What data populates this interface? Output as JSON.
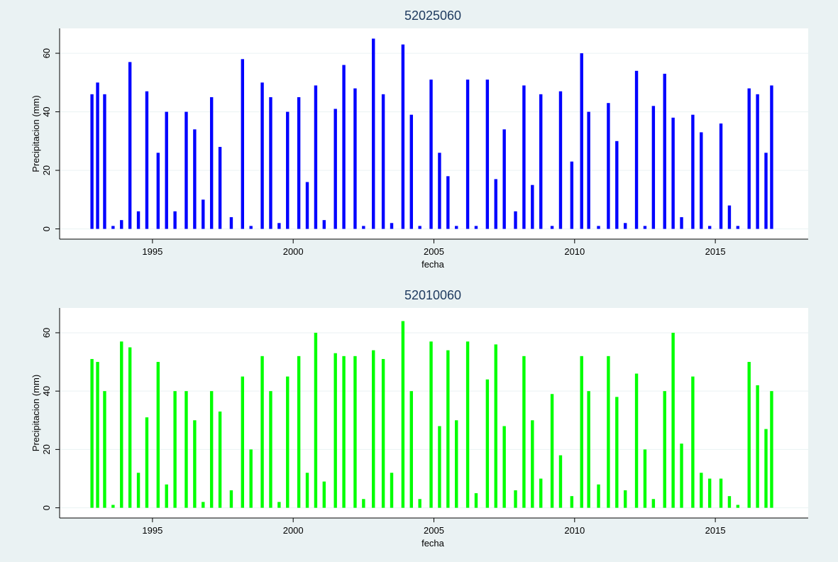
{
  "chart_data": [
    {
      "type": "bar",
      "title": "52025060",
      "xlabel": "fecha",
      "ylabel": "Precipitacion (mm)",
      "color": "#0000ff",
      "xlim": [
        1991.7,
        2018.3
      ],
      "ylim": [
        -3.5,
        68.5
      ],
      "xticks": [
        1995,
        2000,
        2005,
        2010,
        2015
      ],
      "xtick_labels": [
        "1995",
        "2000",
        "2005",
        "2010",
        "2015"
      ],
      "yticks": [
        0,
        20,
        40,
        60
      ],
      "ytick_labels": [
        "0",
        "20",
        "40",
        "60"
      ],
      "grid": true,
      "x": [
        1992.85,
        1993.05,
        1993.3,
        1993.6,
        1993.9,
        1994.2,
        1994.5,
        1994.8,
        1995.2,
        1995.5,
        1995.8,
        1996.2,
        1996.5,
        1996.8,
        1997.1,
        1997.4,
        1997.8,
        1998.2,
        1998.5,
        1998.9,
        1999.2,
        1999.5,
        1999.8,
        2000.2,
        2000.5,
        2000.8,
        2001.1,
        2001.5,
        2001.8,
        2002.2,
        2002.5,
        2002.85,
        2003.2,
        2003.5,
        2003.9,
        2004.2,
        2004.5,
        2004.9,
        2005.2,
        2005.5,
        2005.8,
        2006.2,
        2006.5,
        2006.9,
        2007.2,
        2007.5,
        2007.9,
        2008.2,
        2008.5,
        2008.8,
        2009.2,
        2009.5,
        2009.9,
        2010.25,
        2010.5,
        2010.85,
        2011.2,
        2011.5,
        2011.8,
        2012.2,
        2012.5,
        2012.8,
        2013.2,
        2013.5,
        2013.8,
        2014.2,
        2014.5,
        2014.8,
        2015.2,
        2015.5,
        2015.8,
        2016.2,
        2016.5,
        2016.8,
        2017.0
      ],
      "values": [
        46,
        50,
        46,
        1,
        3,
        57,
        6,
        47,
        26,
        40,
        6,
        40,
        34,
        10,
        45,
        28,
        4,
        58,
        1,
        50,
        45,
        2,
        40,
        45,
        16,
        49,
        3,
        41,
        56,
        48,
        1,
        65,
        46,
        2,
        63,
        39,
        1,
        51,
        26,
        18,
        1,
        51,
        1,
        51,
        17,
        34,
        6,
        49,
        15,
        46,
        1,
        47,
        23,
        60,
        40,
        1,
        43,
        30,
        2,
        54,
        1,
        42,
        53,
        38,
        4,
        39,
        33,
        1,
        36,
        8,
        1,
        48,
        46,
        26,
        49
      ]
    },
    {
      "type": "bar",
      "title": "52010060",
      "xlabel": "fecha",
      "ylabel": "Precipitacion (mm)",
      "color": "#00ff00",
      "xlim": [
        1991.7,
        2018.3
      ],
      "ylim": [
        -3.5,
        68.5
      ],
      "xticks": [
        1995,
        2000,
        2005,
        2010,
        2015
      ],
      "xtick_labels": [
        "1995",
        "2000",
        "2005",
        "2010",
        "2015"
      ],
      "yticks": [
        0,
        20,
        40,
        60
      ],
      "ytick_labels": [
        "0",
        "20",
        "40",
        "60"
      ],
      "grid": true,
      "x": [
        1992.85,
        1993.05,
        1993.3,
        1993.6,
        1993.9,
        1994.2,
        1994.5,
        1994.8,
        1995.2,
        1995.5,
        1995.8,
        1996.2,
        1996.5,
        1996.8,
        1997.1,
        1997.4,
        1997.8,
        1998.2,
        1998.5,
        1998.9,
        1999.2,
        1999.5,
        1999.8,
        2000.2,
        2000.5,
        2000.8,
        2001.1,
        2001.5,
        2001.8,
        2002.2,
        2002.5,
        2002.85,
        2003.2,
        2003.5,
        2003.9,
        2004.2,
        2004.5,
        2004.9,
        2005.2,
        2005.5,
        2005.8,
        2006.2,
        2006.5,
        2006.9,
        2007.2,
        2007.5,
        2007.9,
        2008.2,
        2008.5,
        2008.8,
        2009.2,
        2009.5,
        2009.9,
        2010.25,
        2010.5,
        2010.85,
        2011.2,
        2011.5,
        2011.8,
        2012.2,
        2012.5,
        2012.8,
        2013.2,
        2013.5,
        2013.8,
        2014.2,
        2014.5,
        2014.8,
        2015.2,
        2015.5,
        2015.8,
        2016.2,
        2016.5,
        2016.8,
        2017.0
      ],
      "values": [
        51,
        50,
        40,
        1,
        57,
        55,
        12,
        31,
        50,
        8,
        40,
        40,
        30,
        2,
        40,
        33,
        6,
        45,
        20,
        52,
        40,
        2,
        45,
        52,
        12,
        60,
        9,
        53,
        52,
        52,
        3,
        54,
        51,
        12,
        64,
        40,
        3,
        57,
        28,
        54,
        30,
        57,
        5,
        44,
        56,
        28,
        6,
        52,
        30,
        10,
        39,
        18,
        4,
        52,
        40,
        8,
        52,
        38,
        6,
        46,
        20,
        3,
        40,
        60,
        22,
        45,
        12,
        10,
        10,
        4,
        1,
        50,
        42,
        27,
        40
      ]
    }
  ]
}
